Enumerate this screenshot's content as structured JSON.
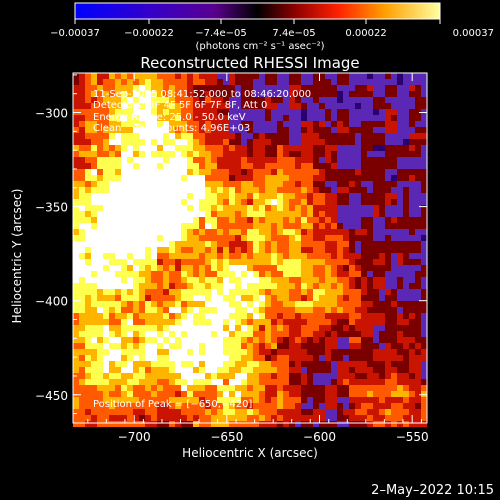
{
  "chart_data": {
    "type": "heatmap",
    "title": "Reconstructed RHESSI Image",
    "xlabel": "Heliocentric X (arcsec)",
    "ylabel": "Heliocentric Y (arcsec)",
    "xlim": [
      -733,
      -542
    ],
    "ylim": [
      -465,
      -279
    ],
    "x_ticks": [
      -700,
      -650,
      -600,
      -550
    ],
    "x_tick_labels": [
      "−700",
      "−650",
      "−600",
      "−550"
    ],
    "y_ticks": [
      -300,
      -350,
      -400,
      -450
    ],
    "y_tick_labels": [
      "−300",
      "−350",
      "−400",
      "−450"
    ],
    "colorbar": {
      "range": [
        -0.00037,
        0.00037
      ],
      "ticks": [
        -0.00037,
        -0.00022,
        -7.4e-05,
        7.4e-05,
        0.00022,
        0.00037
      ],
      "tick_labels": [
        "−0.00037",
        "−0.00022",
        "−7.4e−05",
        "7.4e−05",
        "0.00022",
        "0.00037"
      ],
      "unit_label": "(photons cm⁻² s⁻¹ asec⁻²)"
    },
    "colors": [
      "#000000",
      "#2a0070",
      "#5a28b4",
      "#7a0000",
      "#c81400",
      "#ff5a00",
      "#ffb400",
      "#ffff50",
      "#ffffff"
    ],
    "hot_spots": [
      {
        "x": -680,
        "y": -345,
        "value": 0.00037
      },
      {
        "x": -703,
        "y": -350,
        "value": 0.00026
      },
      {
        "x": -645,
        "y": -395,
        "value": 0.00024
      },
      {
        "x": -665,
        "y": -425,
        "value": 0.0003
      },
      {
        "x": -710,
        "y": -430,
        "value": 0.00022
      },
      {
        "x": -695,
        "y": -300,
        "value": 0.00024
      },
      {
        "x": -622,
        "y": -350,
        "value": 0.00022
      },
      {
        "x": -600,
        "y": -395,
        "value": 0.00018
      },
      {
        "x": -560,
        "y": -455,
        "value": 0.00015
      },
      {
        "x": -720,
        "y": -380,
        "value": 0.00022
      },
      {
        "x": -640,
        "y": -455,
        "value": 0.00018
      }
    ],
    "annotations": [
      "11-Sep-2005 08:41:52.000 to 08:46:20.000",
      "Detectors: 3F 4F 5F 6F 7F 8F, Att 0",
      "Energy Range: 25.0 - 50.0 keV",
      "Clean    Total counts: 4.96E+03"
    ],
    "peak_label": "Position of Peak = [−650,−420]",
    "footer_date": "2–May–2022 10:15"
  }
}
